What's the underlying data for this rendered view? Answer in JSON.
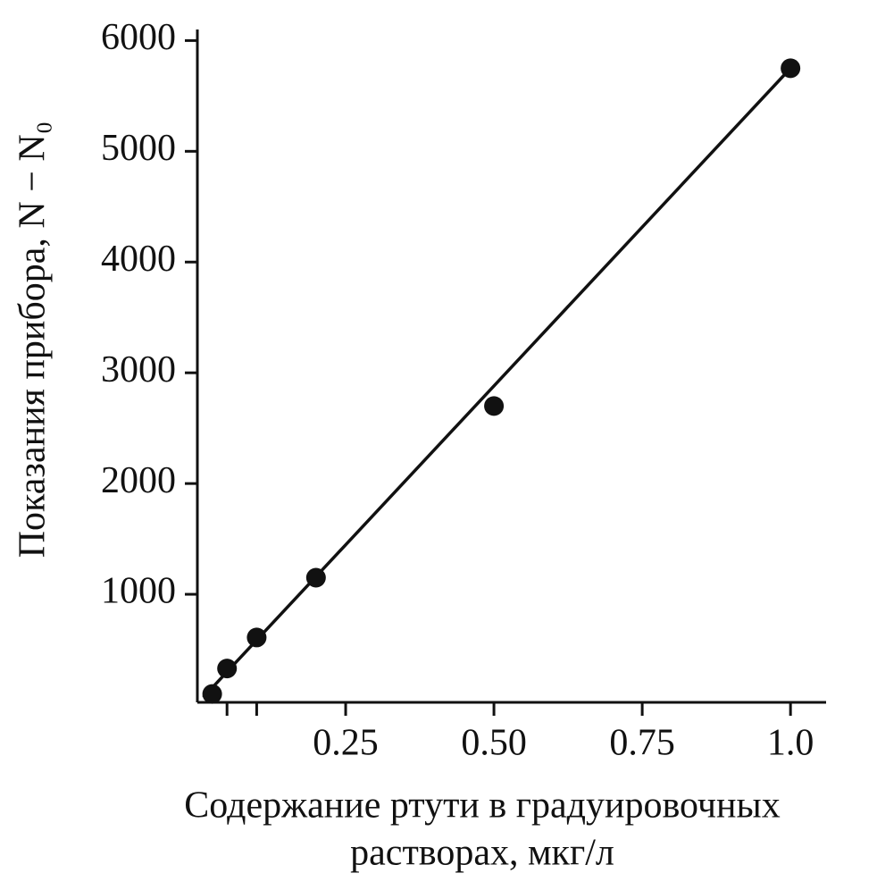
{
  "chart_data": {
    "type": "scatter",
    "ylabel": "Показания прибора, N − N₀",
    "xlabel": [
      "Содержание ртути в градуировочных",
      "растворах, мкг/л"
    ],
    "x": [
      0.025,
      0.05,
      0.1,
      0.2,
      0.5,
      1.0
    ],
    "y": [
      100,
      330,
      610,
      1150,
      2700,
      5750
    ],
    "color": "#111111",
    "fit_line": {
      "x": [
        0.01,
        1.0
      ],
      "y": [
        70,
        5750
      ]
    },
    "xlim": [
      0,
      1.06
    ],
    "ylim": [
      0,
      6100
    ],
    "xticks": [
      0.25,
      {
        "value": 0.5,
        "label": "0.50"
      },
      0.75,
      {
        "value": 1,
        "label": "1.0"
      }
    ],
    "xminor_ticks": [
      0.05,
      0.1
    ],
    "yticks": [
      1000,
      2000,
      3000,
      4000,
      5000,
      6000
    ]
  }
}
